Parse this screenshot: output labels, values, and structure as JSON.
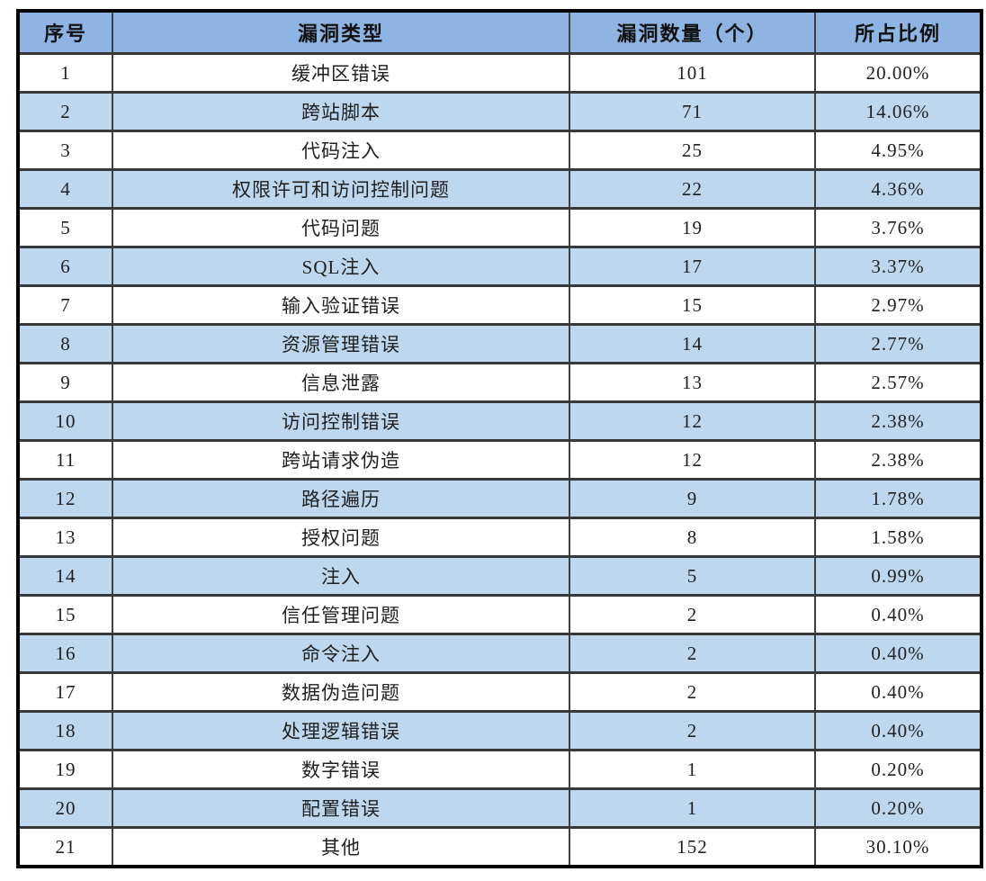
{
  "table": {
    "headers": [
      "序号",
      "漏洞类型",
      "漏洞数量（个）",
      "所占比例"
    ],
    "rows": [
      {
        "no": "1",
        "type": "缓冲区错误",
        "count": "101",
        "pct": "20.00%"
      },
      {
        "no": "2",
        "type": "跨站脚本",
        "count": "71",
        "pct": "14.06%"
      },
      {
        "no": "3",
        "type": "代码注入",
        "count": "25",
        "pct": "4.95%"
      },
      {
        "no": "4",
        "type": "权限许可和访问控制问题",
        "count": "22",
        "pct": "4.36%"
      },
      {
        "no": "5",
        "type": "代码问题",
        "count": "19",
        "pct": "3.76%"
      },
      {
        "no": "6",
        "type": "SQL注入",
        "count": "17",
        "pct": "3.37%"
      },
      {
        "no": "7",
        "type": "输入验证错误",
        "count": "15",
        "pct": "2.97%"
      },
      {
        "no": "8",
        "type": "资源管理错误",
        "count": "14",
        "pct": "2.77%"
      },
      {
        "no": "9",
        "type": "信息泄露",
        "count": "13",
        "pct": "2.57%"
      },
      {
        "no": "10",
        "type": "访问控制错误",
        "count": "12",
        "pct": "2.38%"
      },
      {
        "no": "11",
        "type": "跨站请求伪造",
        "count": "12",
        "pct": "2.38%"
      },
      {
        "no": "12",
        "type": "路径遍历",
        "count": "9",
        "pct": "1.78%"
      },
      {
        "no": "13",
        "type": "授权问题",
        "count": "8",
        "pct": "1.58%"
      },
      {
        "no": "14",
        "type": "注入",
        "count": "5",
        "pct": "0.99%"
      },
      {
        "no": "15",
        "type": "信任管理问题",
        "count": "2",
        "pct": "0.40%"
      },
      {
        "no": "16",
        "type": "命令注入",
        "count": "2",
        "pct": "0.40%"
      },
      {
        "no": "17",
        "type": "数据伪造问题",
        "count": "2",
        "pct": "0.40%"
      },
      {
        "no": "18",
        "type": "处理逻辑错误",
        "count": "2",
        "pct": "0.40%"
      },
      {
        "no": "19",
        "type": "数字错误",
        "count": "1",
        "pct": "0.20%"
      },
      {
        "no": "20",
        "type": "配置错误",
        "count": "1",
        "pct": "0.20%"
      },
      {
        "no": "21",
        "type": "其他",
        "count": "152",
        "pct": "30.10%"
      }
    ]
  },
  "colors": {
    "header_bg": "#8DB4E2",
    "alt_row_bg": "#BDD7EE",
    "row_bg": "#FFFFFF",
    "grid_border": "#3F3F3F",
    "outer_border": "#000000",
    "text": "#1F1F1F"
  }
}
